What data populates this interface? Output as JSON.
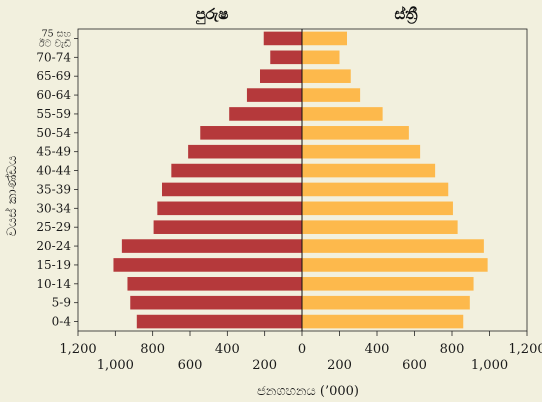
{
  "chart_data": {
    "type": "bar",
    "subtype": "population-pyramid",
    "left_title": "පුරුෂ",
    "right_title": "ස්ත්‍රී",
    "ylabel": "වයස් කාණ්ඩය",
    "xlabel": "ජනගහනය (’000)",
    "categories": [
      "75 සහ ඊට වැඩි",
      "70-74",
      "65-69",
      "60-64",
      "55-59",
      "50-54",
      "45-49",
      "40-44",
      "35-39",
      "30-34",
      "25-29",
      "20-24",
      "15-19",
      "10-14",
      "5-9",
      "0-4"
    ],
    "category_lines": [
      [
        "75 සහ",
        "ඊට වැඩි"
      ]
    ],
    "series": [
      {
        "name": "පුරුෂ",
        "color": "#b5393b",
        "side": "left",
        "values": [
          205,
          170,
          225,
          295,
          390,
          545,
          610,
          700,
          750,
          775,
          795,
          965,
          1010,
          935,
          920,
          885
        ]
      },
      {
        "name": "ස්ත්‍රී",
        "color": "#fdb94c",
        "side": "right",
        "values": [
          240,
          200,
          260,
          310,
          430,
          570,
          630,
          710,
          780,
          805,
          830,
          970,
          990,
          915,
          895,
          860
        ]
      }
    ],
    "x_ticks_upper_left": [
      "1,200",
      "800",
      "400",
      "0"
    ],
    "x_ticks_lower_left": [
      "1,000",
      "600",
      "200"
    ],
    "x_ticks_upper_right": [
      "200",
      "600",
      "1,000"
    ],
    "x_ticks_lower_right": [
      "400",
      "800",
      "1,200"
    ],
    "xlim": [
      0,
      1200
    ],
    "grid": false
  }
}
